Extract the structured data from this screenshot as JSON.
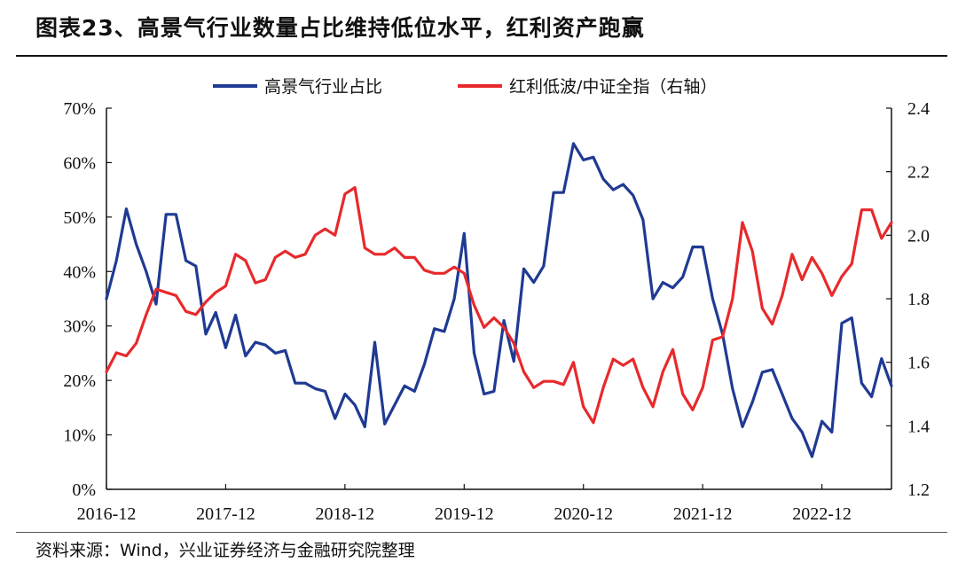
{
  "header": {
    "title": "图表23、高景气行业数量占比维持低位水平，红利资产跑赢"
  },
  "footer": {
    "source": "资料来源：Wind，兴业证券经济与金融研究院整理"
  },
  "colors": {
    "blue": "#1F3A93",
    "red": "#E8292B",
    "axis": "#111111"
  },
  "chart_data": {
    "type": "line",
    "title": "",
    "xlabel": "",
    "ylabel": "",
    "x_tick_labels": [
      "2016-12",
      "2017-12",
      "2018-12",
      "2019-12",
      "2020-12",
      "2021-12",
      "2022-12"
    ],
    "left_ticks": [
      "0%",
      "10%",
      "20%",
      "30%",
      "40%",
      "50%",
      "60%",
      "70%"
    ],
    "right_ticks": [
      "1.2",
      "1.4",
      "1.6",
      "1.8",
      "2.0",
      "2.2",
      "2.4"
    ],
    "ylim_left": [
      0,
      70
    ],
    "ylim_right": [
      1.2,
      2.4
    ],
    "legend": {
      "placement": "top"
    },
    "series": [
      {
        "name": "高景气行业占比",
        "axis": "left",
        "values": [
          35,
          42,
          51.5,
          45,
          40,
          34,
          50.5,
          50.5,
          42,
          41,
          28.5,
          32.5,
          26,
          32,
          24.5,
          27,
          26.5,
          25,
          25.5,
          19.5,
          19.5,
          18.5,
          18,
          13,
          17.5,
          15.5,
          11.5,
          27,
          12,
          15.5,
          19,
          18,
          23,
          29.5,
          29,
          35,
          47,
          25,
          17.5,
          18,
          31,
          23.5,
          40.5,
          38,
          41,
          54.5,
          54.5,
          63.5,
          60.5,
          61,
          57,
          55,
          56,
          54,
          49.5,
          35,
          38,
          37,
          39,
          44.5,
          44.5,
          35,
          28.5,
          18.5,
          11.5,
          16,
          21.5,
          22,
          17.5,
          13,
          10.5,
          6,
          12.5,
          10.5,
          30.5,
          31.5,
          19.5,
          17,
          24,
          19
        ]
      },
      {
        "name": "红利低波/中证全指（右轴）",
        "axis": "right",
        "values": [
          1.57,
          1.63,
          1.62,
          1.66,
          1.75,
          1.83,
          1.82,
          1.81,
          1.76,
          1.75,
          1.79,
          1.82,
          1.84,
          1.94,
          1.92,
          1.85,
          1.86,
          1.93,
          1.95,
          1.93,
          1.94,
          2.0,
          2.02,
          2.0,
          2.13,
          2.15,
          1.96,
          1.94,
          1.94,
          1.96,
          1.93,
          1.93,
          1.89,
          1.88,
          1.88,
          1.9,
          1.88,
          1.78,
          1.71,
          1.74,
          1.71,
          1.66,
          1.57,
          1.52,
          1.54,
          1.54,
          1.53,
          1.6,
          1.46,
          1.41,
          1.52,
          1.61,
          1.59,
          1.61,
          1.52,
          1.46,
          1.57,
          1.64,
          1.5,
          1.45,
          1.52,
          1.67,
          1.68,
          1.8,
          2.04,
          1.95,
          1.77,
          1.72,
          1.81,
          1.94,
          1.86,
          1.93,
          1.88,
          1.81,
          1.87,
          1.91,
          2.08,
          2.08,
          1.99,
          2.04
        ]
      }
    ]
  }
}
